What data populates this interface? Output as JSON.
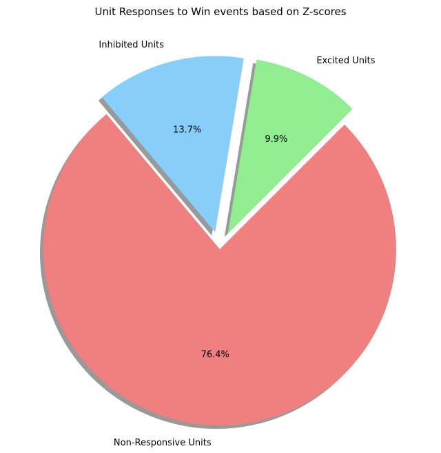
{
  "chart_data": {
    "type": "pie",
    "title": "Unit Responses to Win events based on Z-scores",
    "slices": [
      {
        "label": "Excited Units",
        "value": 9.9,
        "display": "9.9%",
        "color": "#90ee90",
        "exploded": true
      },
      {
        "label": "Inhibited Units",
        "value": 13.7,
        "display": "13.7%",
        "color": "#87cefa",
        "exploded": true
      },
      {
        "label": "Non-Responsive Units",
        "value": 76.4,
        "display": "76.4%",
        "color": "#f08080",
        "exploded": false
      }
    ],
    "shadow": true
  }
}
